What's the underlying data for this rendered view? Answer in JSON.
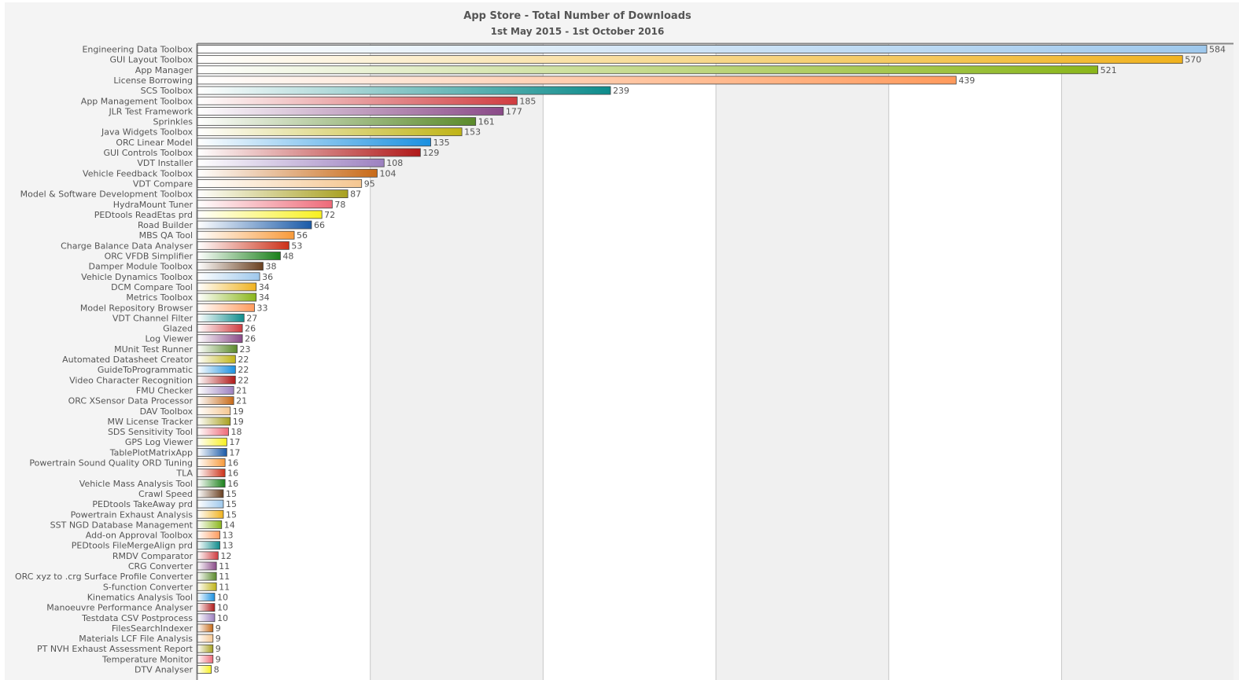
{
  "title": "App Store - Total Number of Downloads",
  "subtitle": "1st May 2015 - 1st October 2016",
  "chart_data": {
    "type": "bar",
    "orientation": "horizontal",
    "title": "App Store - Total Number of Downloads",
    "subtitle": "1st May 2015 - 1st October 2016",
    "xlabel": "",
    "ylabel": "",
    "xlim": [
      0,
      600
    ],
    "grid": true,
    "categories": [
      "Engineering Data Toolbox",
      "GUI Layout Toolbox",
      "App Manager",
      "License Borrowing",
      "SCS Toolbox",
      "App Management Toolbox",
      "JLR Test Framework",
      "Sprinkles",
      "Java Widgets Toolbox",
      "ORC Linear Model",
      "GUI Controls Toolbox",
      "VDT Installer",
      "Vehicle Feedback Toolbox",
      "VDT Compare",
      "Model & Software Development Toolbox",
      "HydraMount Tuner",
      "PEDtools ReadEtas prd",
      "Road Builder",
      "MBS QA Tool",
      "Charge Balance Data Analyser",
      "ORC VFDB Simplifier",
      "Damper Module Toolbox",
      "Vehicle Dynamics Toolbox",
      "DCM Compare Tool",
      "Metrics Toolbox",
      "Model Repository Browser",
      "VDT Channel Filter",
      "Glazed",
      "Log Viewer",
      "MUnit Test Runner",
      "Automated Datasheet Creator",
      "GuideToProgrammatic",
      "Video Character Recognition",
      "FMU Checker",
      "ORC XSensor Data Processor",
      "DAV Toolbox",
      "MW License Tracker",
      "SDS Sensitivity Tool",
      "GPS Log Viewer",
      "TablePlotMatrixApp",
      "Powertrain Sound Quality ORD Tuning",
      "TLA",
      "Vehicle Mass Analysis Tool",
      "Crawl Speed",
      "PEDtools TakeAway prd",
      "Powertrain Exhaust Analysis",
      "SST NGD Database Management",
      "Add-on Approval Toolbox",
      "PEDtools FileMergeAlign prd",
      "RMDV Comparator",
      "CRG Converter",
      "ORC xyz to .crg Surface Profile Converter",
      "S-function Converter",
      "Kinematics Analysis Tool",
      "Manoeuvre Performance Analyser",
      "Testdata CSV Postprocess",
      "FilesSearchIndexer",
      "Materials LCF File Analysis",
      "PT NVH Exhaust Assessment Report",
      "Temperature Monitor",
      "DTV Analyser"
    ],
    "values": [
      584,
      570,
      521,
      439,
      239,
      185,
      177,
      161,
      153,
      135,
      129,
      108,
      104,
      95,
      87,
      78,
      72,
      66,
      56,
      53,
      48,
      38,
      36,
      34,
      34,
      33,
      27,
      26,
      26,
      23,
      22,
      22,
      22,
      21,
      21,
      19,
      19,
      18,
      17,
      17,
      16,
      16,
      16,
      15,
      15,
      15,
      14,
      13,
      13,
      12,
      11,
      11,
      11,
      10,
      10,
      10,
      9,
      9,
      9,
      9,
      8
    ],
    "palette": [
      "#9ec8ec",
      "#f0b21e",
      "#8ab61a",
      "#ff9a5c",
      "#0e8c8c",
      "#d03c40",
      "#8a4a88",
      "#5a8a2a",
      "#c0b416",
      "#1a90e0",
      "#b01818",
      "#9c80c0",
      "#c86a18",
      "#f5c690",
      "#a8a020",
      "#ee6a78",
      "#f8f020",
      "#1a5aa8",
      "#f89a3a",
      "#cc3018",
      "#1a801a",
      "#6a4020"
    ]
  }
}
